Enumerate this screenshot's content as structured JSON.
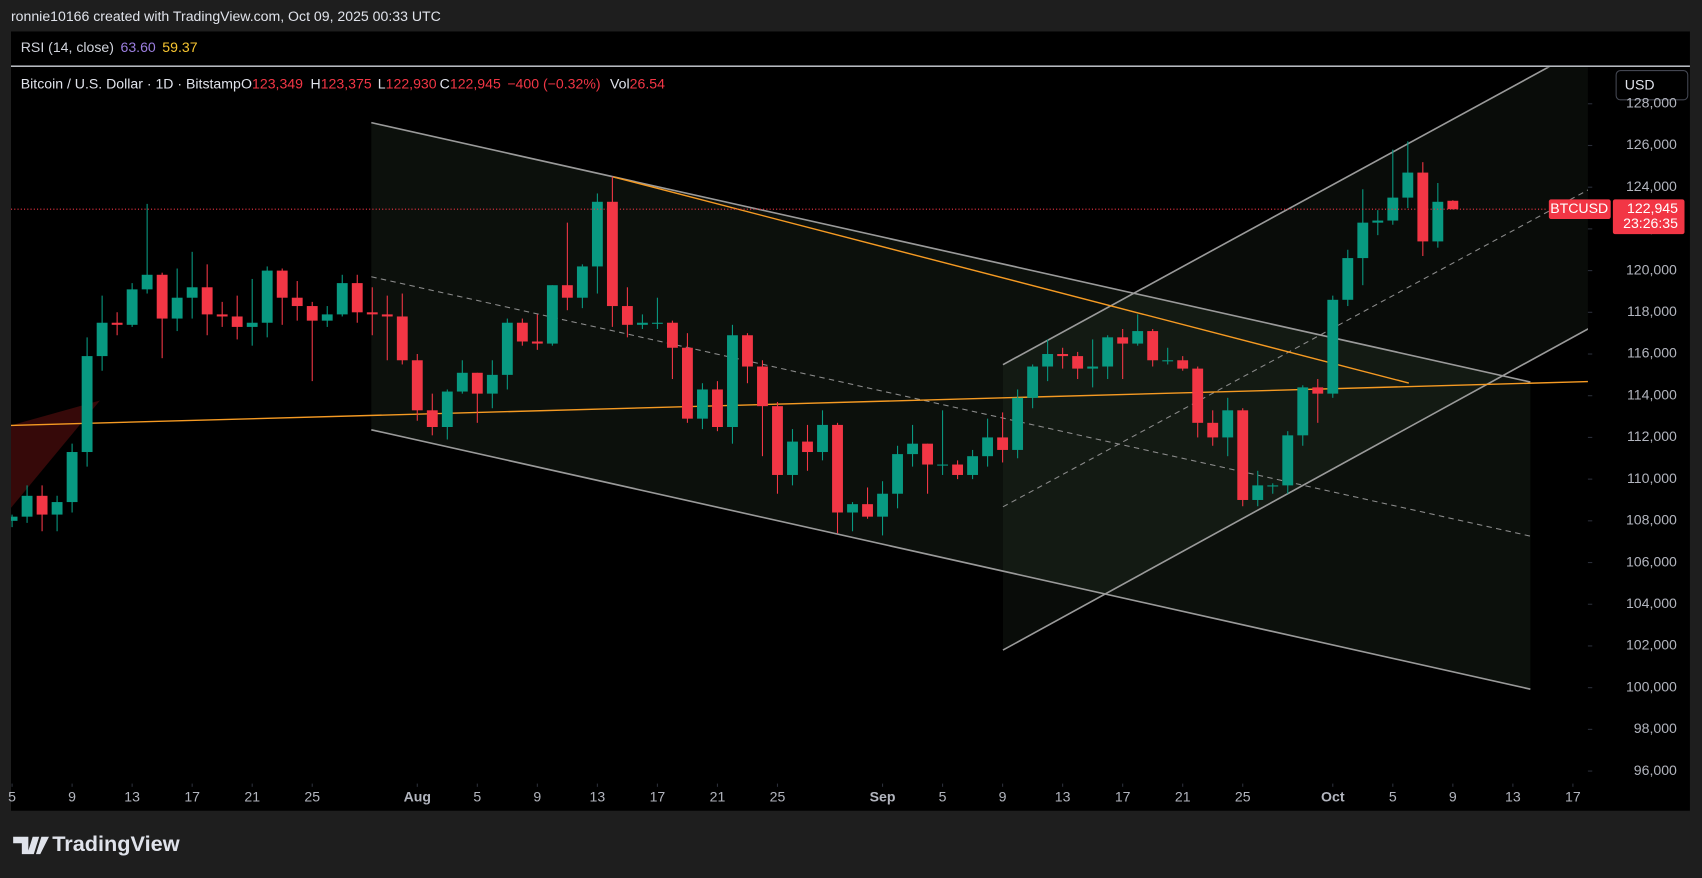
{
  "header": "ronnie10166 created with TradingView.com, Oct 09, 2025 00:33 UTC",
  "brand": "TradingView",
  "chart_data": {
    "type": "candlestick",
    "indicator": {
      "name": "RSI (14, close)",
      "values": [
        "63.60",
        "59.37"
      ]
    },
    "legend": {
      "symbol": "Bitcoin / U.S. Dollar · 1D · Bitstamp",
      "open_label": "O",
      "open": "123,349",
      "high_label": "H",
      "high": "123,375",
      "low_label": "L",
      "low": "122,930",
      "close_label": "C",
      "close": "122,945",
      "change": "−400 (−0.32%)",
      "volume_label": "Vol",
      "volume": "26.54"
    },
    "currency": "USD",
    "last_price_label": {
      "symbol": "BTCUSD",
      "price": "122,945",
      "countdown": "23:26:35"
    },
    "up_color": "#089981",
    "down_color": "#f23645",
    "x": [
      "07-05",
      "07-06",
      "07-07",
      "07-08",
      "07-09",
      "07-10",
      "07-11",
      "07-12",
      "07-13",
      "07-14",
      "07-15",
      "07-16",
      "07-17",
      "07-18",
      "07-19",
      "07-20",
      "07-21",
      "07-22",
      "07-23",
      "07-24",
      "07-25",
      "07-26",
      "07-27",
      "07-28",
      "07-29",
      "07-30",
      "07-31",
      "08-01",
      "08-02",
      "08-03",
      "08-04",
      "08-05",
      "08-06",
      "08-07",
      "08-08",
      "08-09",
      "08-10",
      "08-11",
      "08-12",
      "08-13",
      "08-14",
      "08-15",
      "08-16",
      "08-17",
      "08-18",
      "08-19",
      "08-20",
      "08-21",
      "08-22",
      "08-23",
      "08-24",
      "08-25",
      "08-26",
      "08-27",
      "08-28",
      "08-29",
      "08-30",
      "08-31",
      "09-01",
      "09-02",
      "09-03",
      "09-04",
      "09-05",
      "09-06",
      "09-07",
      "09-08",
      "09-09",
      "09-10",
      "09-11",
      "09-12",
      "09-13",
      "09-14",
      "09-15",
      "09-16",
      "09-17",
      "09-18",
      "09-19",
      "09-20",
      "09-21",
      "09-22",
      "09-23",
      "09-24",
      "09-25",
      "09-26",
      "09-27",
      "09-28",
      "09-29",
      "09-30",
      "10-01",
      "10-02",
      "10-03",
      "10-04",
      "10-05",
      "10-06",
      "10-07",
      "10-08",
      "10-09"
    ],
    "open": [
      108000,
      108200,
      109200,
      108300,
      108900,
      111300,
      115900,
      117500,
      117400,
      119100,
      119800,
      117700,
      118700,
      119200,
      117900,
      117800,
      117300,
      117500,
      120000,
      118700,
      118300,
      117600,
      117900,
      119400,
      118000,
      117900,
      117800,
      115700,
      113300,
      112500,
      114200,
      115100,
      114100,
      115000,
      117500,
      116600,
      116500,
      119300,
      118700,
      120200,
      123300,
      118300,
      117400,
      117500,
      117500,
      116300,
      112900,
      114300,
      112500,
      116900,
      115400,
      113500,
      110200,
      111800,
      111300,
      112600,
      108400,
      108800,
      108200,
      109300,
      111200,
      111700,
      110700,
      110700,
      110200,
      111100,
      112000,
      111400,
      113900,
      115400,
      116000,
      115900,
      115300,
      115400,
      116800,
      116500,
      117100,
      115700,
      115700,
      115300,
      112700,
      112000,
      113300,
      109000,
      109700,
      109700,
      112100,
      114400,
      114100,
      118600,
      120600,
      122300,
      122400,
      123500,
      124700,
      121400,
      123349
    ],
    "high": [
      108300,
      109700,
      109700,
      109200,
      111700,
      116800,
      118800,
      118000,
      119400,
      123200,
      119900,
      120100,
      120900,
      120300,
      118500,
      118800,
      119600,
      120200,
      120100,
      119500,
      118500,
      118300,
      119800,
      119800,
      119200,
      118800,
      118900,
      116000,
      114100,
      114300,
      115700,
      115100,
      115700,
      117700,
      117700,
      117900,
      119300,
      122300,
      120300,
      123700,
      124500,
      119200,
      117900,
      118700,
      117600,
      117000,
      114600,
      114700,
      117400,
      117000,
      115700,
      113700,
      112400,
      112600,
      113300,
      112700,
      108900,
      109600,
      109900,
      111600,
      112600,
      111700,
      113300,
      110900,
      111400,
      112900,
      113200,
      114300,
      115500,
      116700,
      116300,
      116100,
      116700,
      116900,
      117200,
      117900,
      117200,
      116300,
      115900,
      115400,
      113300,
      113900,
      113400,
      110400,
      109800,
      112300,
      114500,
      114800,
      118800,
      121000,
      123900,
      122900,
      125800,
      126200,
      125200,
      124200,
      123375
    ],
    "low": [
      107700,
      107900,
      107500,
      107500,
      108400,
      110600,
      115200,
      116900,
      117300,
      118900,
      115800,
      117100,
      117700,
      116900,
      117300,
      116700,
      116400,
      116800,
      117400,
      117600,
      114700,
      117300,
      117800,
      117500,
      116900,
      115700,
      115500,
      112800,
      112100,
      111900,
      114100,
      112700,
      113400,
      114300,
      116400,
      116200,
      116400,
      118100,
      118200,
      118900,
      117300,
      116800,
      117200,
      117200,
      114800,
      112700,
      112400,
      112300,
      111700,
      114600,
      111100,
      109300,
      109700,
      110400,
      110900,
      107400,
      107500,
      108100,
      107300,
      108600,
      110600,
      109300,
      110200,
      110000,
      110000,
      110600,
      110800,
      111000,
      113400,
      114700,
      115300,
      114800,
      114400,
      114800,
      114800,
      116400,
      115400,
      115500,
      115200,
      112000,
      111600,
      111100,
      108700,
      108700,
      109300,
      109300,
      111600,
      112700,
      113900,
      118300,
      119300,
      121700,
      122200,
      123000,
      120700,
      121100,
      122930
    ],
    "close": [
      108200,
      109200,
      108300,
      108900,
      111300,
      115900,
      117500,
      117400,
      119100,
      119800,
      117700,
      118700,
      119200,
      117900,
      117800,
      117300,
      117500,
      120000,
      118700,
      118300,
      117600,
      117900,
      119400,
      118000,
      117900,
      117800,
      115700,
      113300,
      112500,
      114200,
      115100,
      114100,
      115000,
      117500,
      116600,
      116500,
      119300,
      118700,
      120200,
      123300,
      118300,
      117400,
      117500,
      117500,
      116300,
      112900,
      114300,
      112500,
      116900,
      115400,
      113500,
      110200,
      111800,
      111300,
      112600,
      108400,
      108800,
      108200,
      109300,
      111200,
      111700,
      110700,
      110700,
      110200,
      111100,
      112000,
      111400,
      113900,
      115400,
      116000,
      115900,
      115300,
      115400,
      116800,
      116500,
      117100,
      115700,
      115700,
      115300,
      112700,
      112000,
      113300,
      109000,
      109700,
      109700,
      112100,
      114400,
      114100,
      118600,
      120600,
      122300,
      122400,
      123500,
      124700,
      121400,
      123300,
      122945
    ],
    "xlim": [
      "07-05",
      "10-18"
    ],
    "xticks": [
      {
        "value": "07-05",
        "label": "5"
      },
      {
        "value": "07-09",
        "label": "9"
      },
      {
        "value": "07-13",
        "label": "13"
      },
      {
        "value": "07-17",
        "label": "17"
      },
      {
        "value": "07-21",
        "label": "21"
      },
      {
        "value": "07-25",
        "label": "25"
      },
      {
        "value": "08-01",
        "label": "Aug"
      },
      {
        "value": "08-05",
        "label": "5"
      },
      {
        "value": "08-09",
        "label": "9"
      },
      {
        "value": "08-13",
        "label": "13"
      },
      {
        "value": "08-17",
        "label": "17"
      },
      {
        "value": "08-21",
        "label": "21"
      },
      {
        "value": "08-25",
        "label": "25"
      },
      {
        "value": "09-01",
        "label": "Sep"
      },
      {
        "value": "09-05",
        "label": "5"
      },
      {
        "value": "09-09",
        "label": "9"
      },
      {
        "value": "09-13",
        "label": "13"
      },
      {
        "value": "09-17",
        "label": "17"
      },
      {
        "value": "09-21",
        "label": "21"
      },
      {
        "value": "09-25",
        "label": "25"
      },
      {
        "value": "10-01",
        "label": "Oct"
      },
      {
        "value": "10-05",
        "label": "5"
      },
      {
        "value": "10-09",
        "label": "9"
      },
      {
        "value": "10-13",
        "label": "13"
      },
      {
        "value": "10-17",
        "label": "17"
      }
    ],
    "ylim": [
      95400,
      129750
    ],
    "yticks": [
      {
        "value": 96000,
        "label": "96,000"
      },
      {
        "value": 98000,
        "label": "98,000"
      },
      {
        "value": 100000,
        "label": "100,000"
      },
      {
        "value": 102000,
        "label": "102,000"
      },
      {
        "value": 104000,
        "label": "104,000"
      },
      {
        "value": 106000,
        "label": "106,000"
      },
      {
        "value": 108000,
        "label": "108,000"
      },
      {
        "value": 110000,
        "label": "110,000"
      },
      {
        "value": 112000,
        "label": "112,000"
      },
      {
        "value": 114000,
        "label": "114,000"
      },
      {
        "value": 116000,
        "label": "116,000"
      },
      {
        "value": 118000,
        "label": "118,000"
      },
      {
        "value": 120000,
        "label": "120,000"
      },
      {
        "value": 122000,
        "label": "122,000"
      },
      {
        "value": 124000,
        "label": "124,000"
      },
      {
        "value": 126000,
        "label": "126,000"
      },
      {
        "value": 128000,
        "label": "128,000"
      }
    ]
  }
}
